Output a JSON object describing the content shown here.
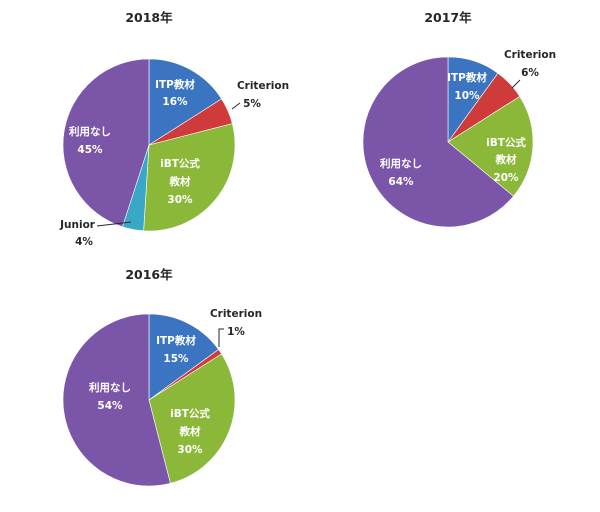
{
  "colors": {
    "ITP教材": "#3b74c1",
    "Criterion": "#cf3b3b",
    "iBT公式教材": "#8cb83a",
    "Junior": "#3aa7c6",
    "利用なし": "#7b56a8"
  },
  "chart_data": [
    {
      "type": "pie",
      "title": "2018年",
      "slices": [
        {
          "label": "ITP教材",
          "value": 16,
          "value_label": "16%"
        },
        {
          "label": "Criterion",
          "value": 5,
          "value_label": "5%"
        },
        {
          "label": "iBT公式教材",
          "value": 30,
          "value_label": "30%"
        },
        {
          "label": "Junior",
          "value": 4,
          "value_label": "4%"
        },
        {
          "label": "利用なし",
          "value": 45,
          "value_label": "45%"
        }
      ]
    },
    {
      "type": "pie",
      "title": "2017年",
      "slices": [
        {
          "label": "ITP教材",
          "value": 10,
          "value_label": "10%"
        },
        {
          "label": "Criterion",
          "value": 6,
          "value_label": "6%"
        },
        {
          "label": "iBT公式教材",
          "value": 20,
          "value_label": "20%"
        },
        {
          "label": "利用なし",
          "value": 64,
          "value_label": "64%"
        }
      ]
    },
    {
      "type": "pie",
      "title": "2016年",
      "slices": [
        {
          "label": "ITP教材",
          "value": 15,
          "value_label": "15%"
        },
        {
          "label": "Criterion",
          "value": 1,
          "value_label": "1%"
        },
        {
          "label": "iBT公式教材",
          "value": 30,
          "value_label": "30%"
        },
        {
          "label": "利用なし",
          "value": 54,
          "value_label": "54%"
        }
      ]
    }
  ]
}
